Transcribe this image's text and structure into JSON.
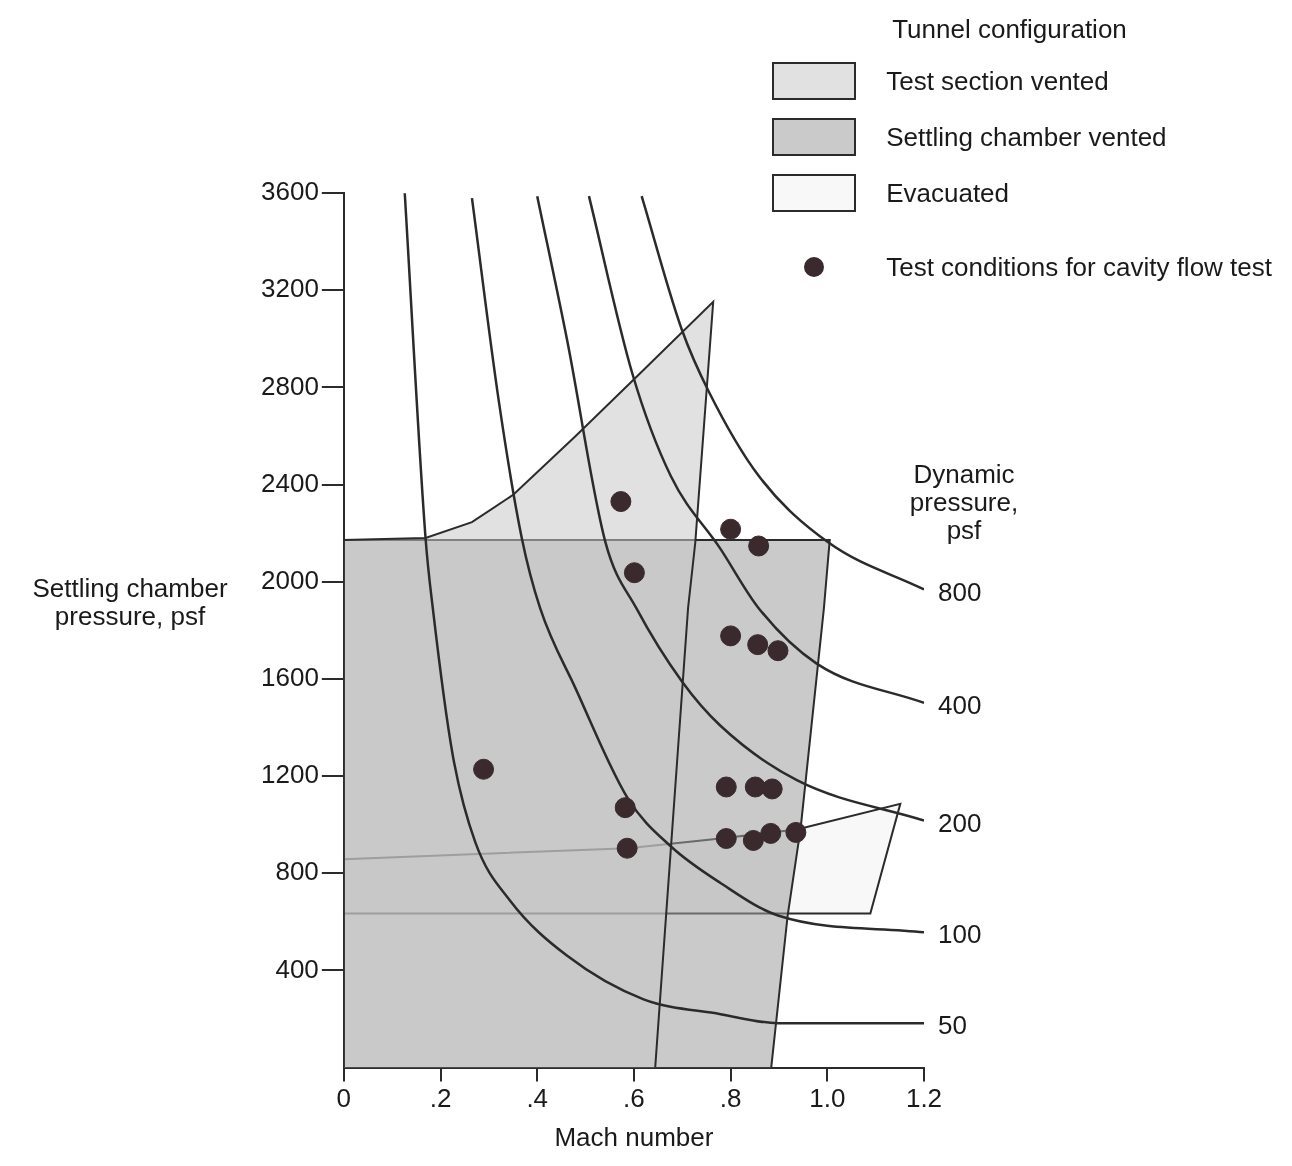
{
  "chart_data": {
    "type": "line",
    "xlabel": "Mach number",
    "ylabel": "Settling chamber pressure, psf",
    "legend_title": "Tunnel configuration",
    "legend": "top right",
    "annotations": [
      "Dynamic pressure, psf"
    ],
    "xlim": [
      0,
      1.2
    ],
    "xticks": [
      0,
      {
        "value": 0.2,
        "label": ".2"
      },
      {
        "value": 0.4,
        "label": ".4"
      },
      {
        "value": 0.6,
        "label": ".6"
      },
      {
        "value": 0.8,
        "label": ".8"
      },
      {
        "value": 1.0,
        "label": "1.0"
      },
      1.2
    ],
    "ylim": [
      0,
      3600
    ],
    "yticks": [
      400,
      800,
      1200,
      1600,
      2000,
      2400,
      2800,
      3200,
      3600
    ],
    "series": [
      {
        "name": "Test section vented",
        "type": "area",
        "color": "#c9c9c9",
        "x": [
          0,
          0,
          0.169,
          0.265,
          0.351,
          0.479,
          0.605,
          0.764,
          0.727,
          0.712,
          0.644
        ],
        "values": [
          0,
          2172,
          2180,
          2245,
          2359,
          2599,
          2843,
          3152,
          2163,
          1891,
          0
        ]
      },
      {
        "name": "Settling chamber vented",
        "type": "area",
        "color": "#9e9e9e",
        "x": [
          0,
          0,
          1.005,
          0.993,
          0.945,
          0.918,
          0.884
        ],
        "values": [
          0,
          2172,
          2172,
          1891,
          988,
          626,
          0
        ]
      },
      {
        "name": "Evacuated",
        "type": "area",
        "color": "#f2f2f2",
        "x": [
          0,
          0.588,
          0.779,
          0.937,
          1.151,
          1.089,
          0
        ],
        "values": [
          858,
          903,
          943,
          980,
          1086,
          634,
          634
        ]
      },
      {
        "name": "800",
        "type": "line",
        "color": "#2b2b2b",
        "x": [
          0.616,
          0.699,
          0.755,
          0.858,
          1.001,
          1.2
        ],
        "values": [
          3587,
          3038,
          2782,
          2436,
          2163,
          1968
        ]
      },
      {
        "name": "400",
        "type": "line",
        "color": "#2b2b2b",
        "x": [
          0.507,
          0.597,
          0.676,
          0.779,
          0.858,
          0.978,
          1.2
        ],
        "values": [
          3587,
          2855,
          2436,
          2135,
          1891,
          1663,
          1501
        ]
      },
      {
        "name": "200",
        "type": "line",
        "color": "#2b2b2b",
        "x": [
          0.4,
          0.462,
          0.541,
          0.605,
          0.699,
          0.779,
          0.937,
          1.2
        ],
        "values": [
          3587,
          2993,
          2163,
          1891,
          1590,
          1407,
          1183,
          1017
        ]
      },
      {
        "name": "100",
        "type": "line",
        "color": "#2b2b2b",
        "x": [
          0.265,
          0.321,
          0.368,
          0.406,
          0.479,
          0.588,
          0.676,
          0.779,
          0.898,
          1.2
        ],
        "values": [
          3579,
          2737,
          2180,
          1891,
          1562,
          1106,
          911,
          760,
          626,
          557
        ]
      },
      {
        "name": "50",
        "type": "line",
        "color": "#2b2b2b",
        "x": [
          0.126,
          0.169,
          0.184,
          0.225,
          0.272,
          0.344,
          0.462,
          0.62,
          0.779,
          0.898,
          1.2
        ],
        "values": [
          3599,
          2180,
          1891,
          1289,
          927,
          687,
          460,
          281,
          220,
          183,
          183
        ]
      },
      {
        "name": "Test conditions for cavity flow test",
        "type": "scatter",
        "color": "#3a2a2e",
        "x": [
          0.573,
          0.601,
          0.8,
          0.858,
          0.8,
          0.856,
          0.898,
          0.289,
          0.791,
          0.851,
          0.886,
          0.582,
          0.586,
          0.791,
          0.847,
          0.883,
          0.935
        ],
        "values": [
          2330,
          2037,
          2216,
          2147,
          1777,
          1741,
          1716,
          1228,
          1155,
          1155,
          1147,
          1070,
          903,
          943,
          935,
          964,
          968
        ]
      }
    ]
  }
}
